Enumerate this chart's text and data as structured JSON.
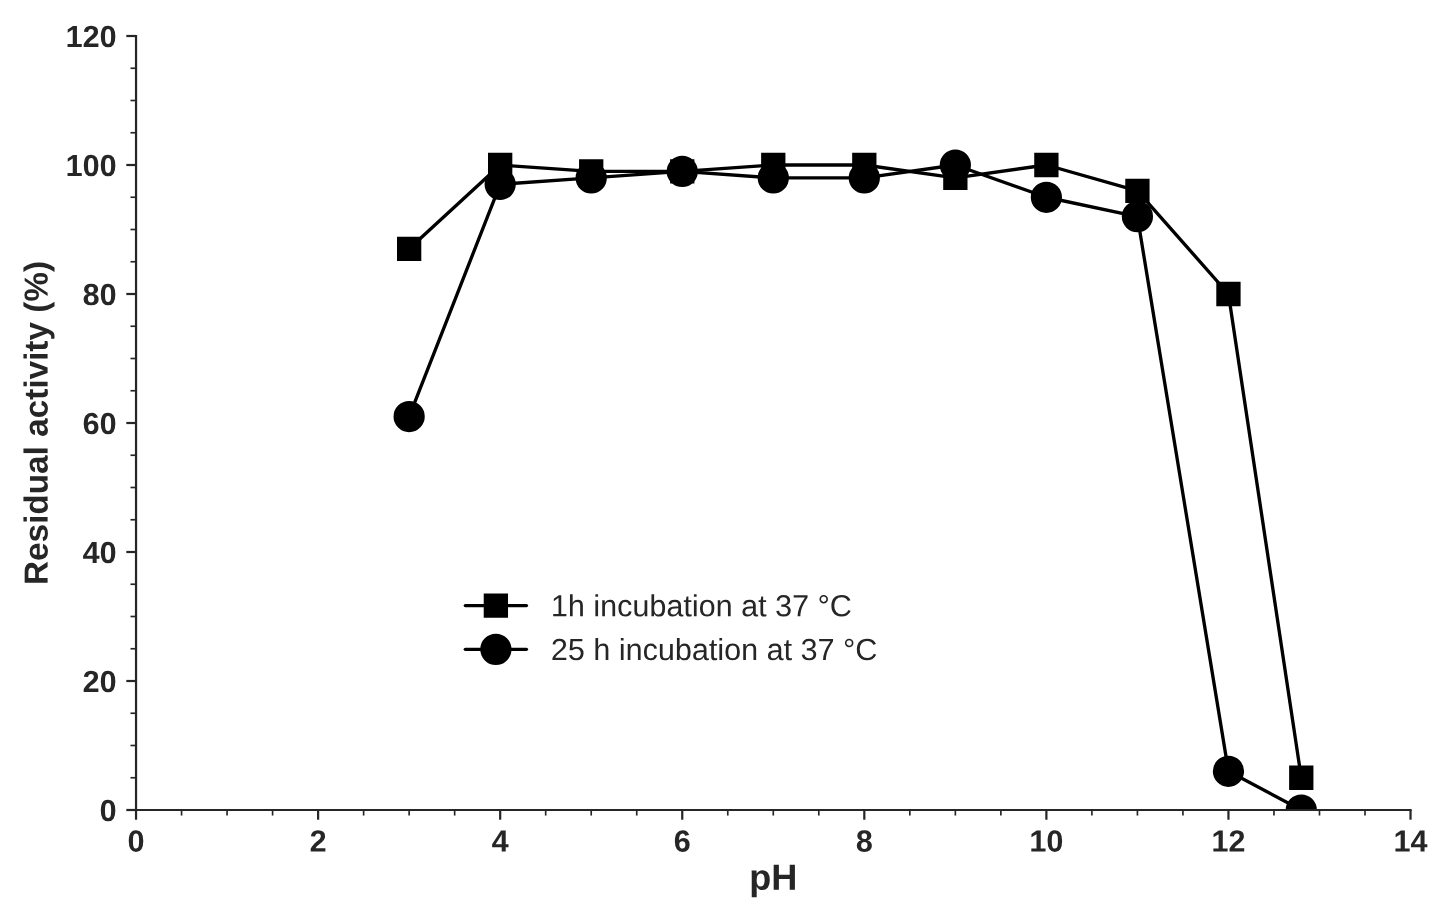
{
  "chart_data": {
    "type": "line",
    "xlabel": "pH",
    "ylabel": "Residual activity (%)",
    "xlim": [
      0,
      14
    ],
    "xticks": [
      0,
      2,
      4,
      6,
      8,
      10,
      12,
      14
    ],
    "ylim": [
      0,
      120
    ],
    "yticks": [
      0,
      20,
      40,
      60,
      80,
      100,
      120
    ],
    "legend": "bottom",
    "line_style": "solid",
    "series": [
      {
        "name": "1h incubation at 37 °C",
        "color": "#000000",
        "marker": "square",
        "x": [
          3,
          4,
          5,
          6,
          7,
          8,
          9,
          10,
          11,
          12,
          12.8
        ],
        "values": [
          87,
          100,
          99,
          99,
          100,
          100,
          98,
          100,
          96,
          80,
          5
        ]
      },
      {
        "name": "25 h incubation at 37 °C",
        "color": "#000000",
        "marker": "circle",
        "x": [
          3,
          4,
          5,
          6,
          7,
          8,
          9,
          10,
          11,
          12,
          12.8
        ],
        "values": [
          61,
          97,
          98,
          99,
          98,
          98,
          100,
          95,
          92,
          6,
          0
        ]
      }
    ]
  }
}
